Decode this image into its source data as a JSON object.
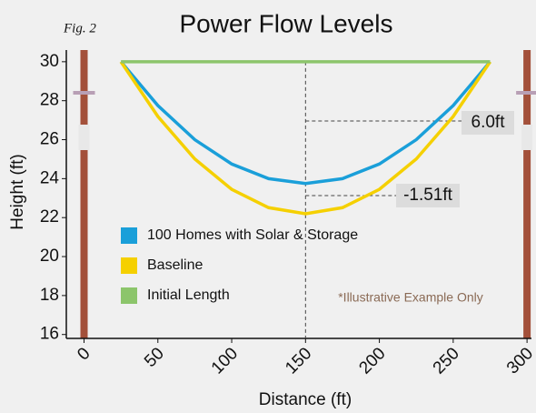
{
  "chart_data": {
    "type": "line",
    "title": "Power Flow Levels",
    "figure_label": "Fig. 2",
    "note": "*Illustrative Example Only",
    "x_label": "Distance (ft)",
    "y_label": "Height (ft)",
    "annotations": [
      "6.0ft",
      "-1.51ft"
    ],
    "x": [
      25,
      50,
      75,
      100,
      125,
      150,
      175,
      200,
      225,
      250,
      275
    ],
    "series": [
      {
        "name": "100 Homes with Solar & Storage",
        "color": "#1a9fd9",
        "values": [
          30,
          27.75,
          26.0,
          24.75,
          24.0,
          23.75,
          24.0,
          24.75,
          26.0,
          27.75,
          30
        ]
      },
      {
        "name": "Baseline",
        "color": "#f5d000",
        "values": [
          30,
          27.19,
          25.01,
          23.45,
          22.51,
          22.2,
          22.51,
          23.45,
          25.01,
          27.19,
          30
        ]
      },
      {
        "name": "Initial Length",
        "color": "#8cc56b",
        "values": [
          30,
          30,
          30,
          30,
          30,
          30,
          30,
          30,
          30,
          30,
          30
        ]
      }
    ],
    "xlim": [
      -12,
      303
    ],
    "ylim": [
      15.8,
      30.6
    ],
    "xticks": [
      0,
      50,
      100,
      150,
      200,
      250,
      300
    ],
    "yticks": [
      16,
      18,
      20,
      22,
      24,
      26,
      28,
      30
    ]
  }
}
